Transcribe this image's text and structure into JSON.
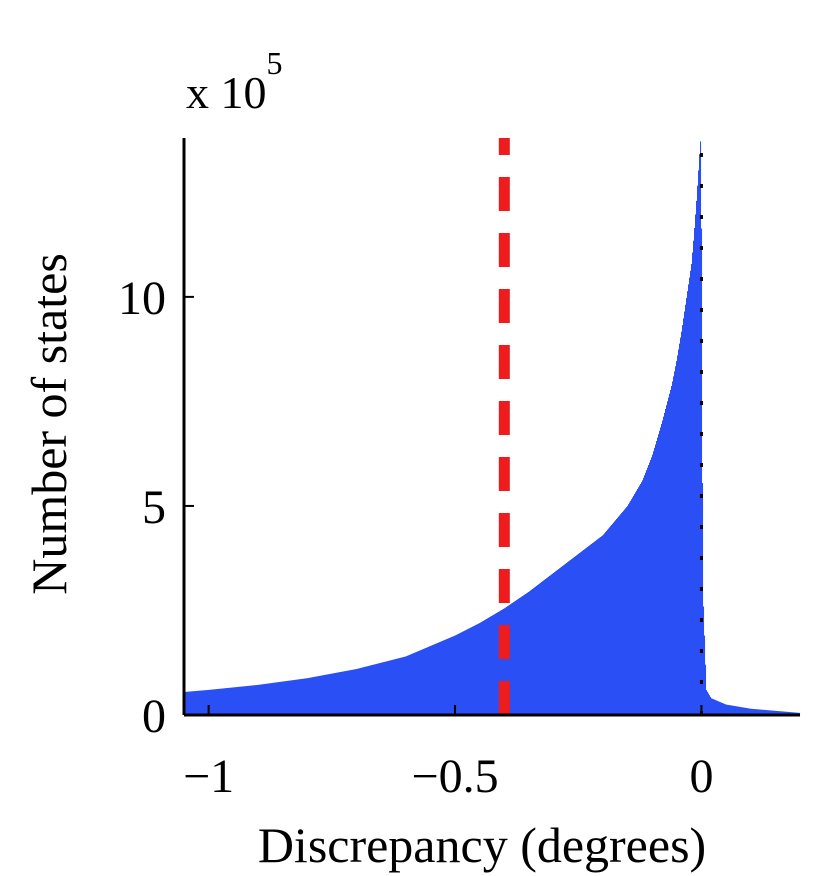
{
  "chart_data": {
    "type": "histogram",
    "xlabel": "Discrepancy (degrees)",
    "ylabel": "Number of states",
    "y_multiplier": {
      "base": "x 10",
      "exponent": "5"
    },
    "xlim": [
      -1.05,
      0.2
    ],
    "ylim": [
      0,
      13.8
    ],
    "xticks": [
      {
        "value": -1,
        "label": "−1"
      },
      {
        "value": -0.5,
        "label": "−0.5"
      },
      {
        "value": 0,
        "label": "0"
      }
    ],
    "yticks": [
      {
        "value": 0,
        "label": "0"
      },
      {
        "value": 5,
        "label": "5"
      },
      {
        "value": 10,
        "label": "10"
      }
    ],
    "series": [
      {
        "x": [
          -1.05,
          -1.0,
          -0.9,
          -0.8,
          -0.7,
          -0.6,
          -0.5,
          -0.45,
          -0.4,
          -0.35,
          -0.3,
          -0.25,
          -0.2,
          -0.15,
          -0.12,
          -0.1,
          -0.08,
          -0.06,
          -0.05,
          -0.04,
          -0.03,
          -0.02,
          -0.015,
          -0.01,
          -0.005,
          -0.002,
          0.0,
          0.003,
          0.01,
          0.02,
          0.05,
          0.1,
          0.15,
          0.2
        ],
        "values": [
          0.55,
          0.6,
          0.72,
          0.88,
          1.1,
          1.4,
          1.9,
          2.2,
          2.55,
          2.95,
          3.4,
          3.85,
          4.3,
          5.0,
          5.6,
          6.2,
          7.0,
          7.9,
          8.5,
          9.2,
          10.0,
          10.8,
          11.5,
          12.3,
          13.2,
          13.8,
          12.0,
          3.0,
          0.6,
          0.4,
          0.25,
          0.15,
          0.1,
          0.05
        ],
        "color": "#2a4ff5"
      }
    ],
    "reference_lines": [
      {
        "x": -0.4,
        "style": "dashed",
        "color": "#ee1c1c"
      },
      {
        "x": 0,
        "style": "dashed",
        "color": "#000000"
      }
    ]
  }
}
